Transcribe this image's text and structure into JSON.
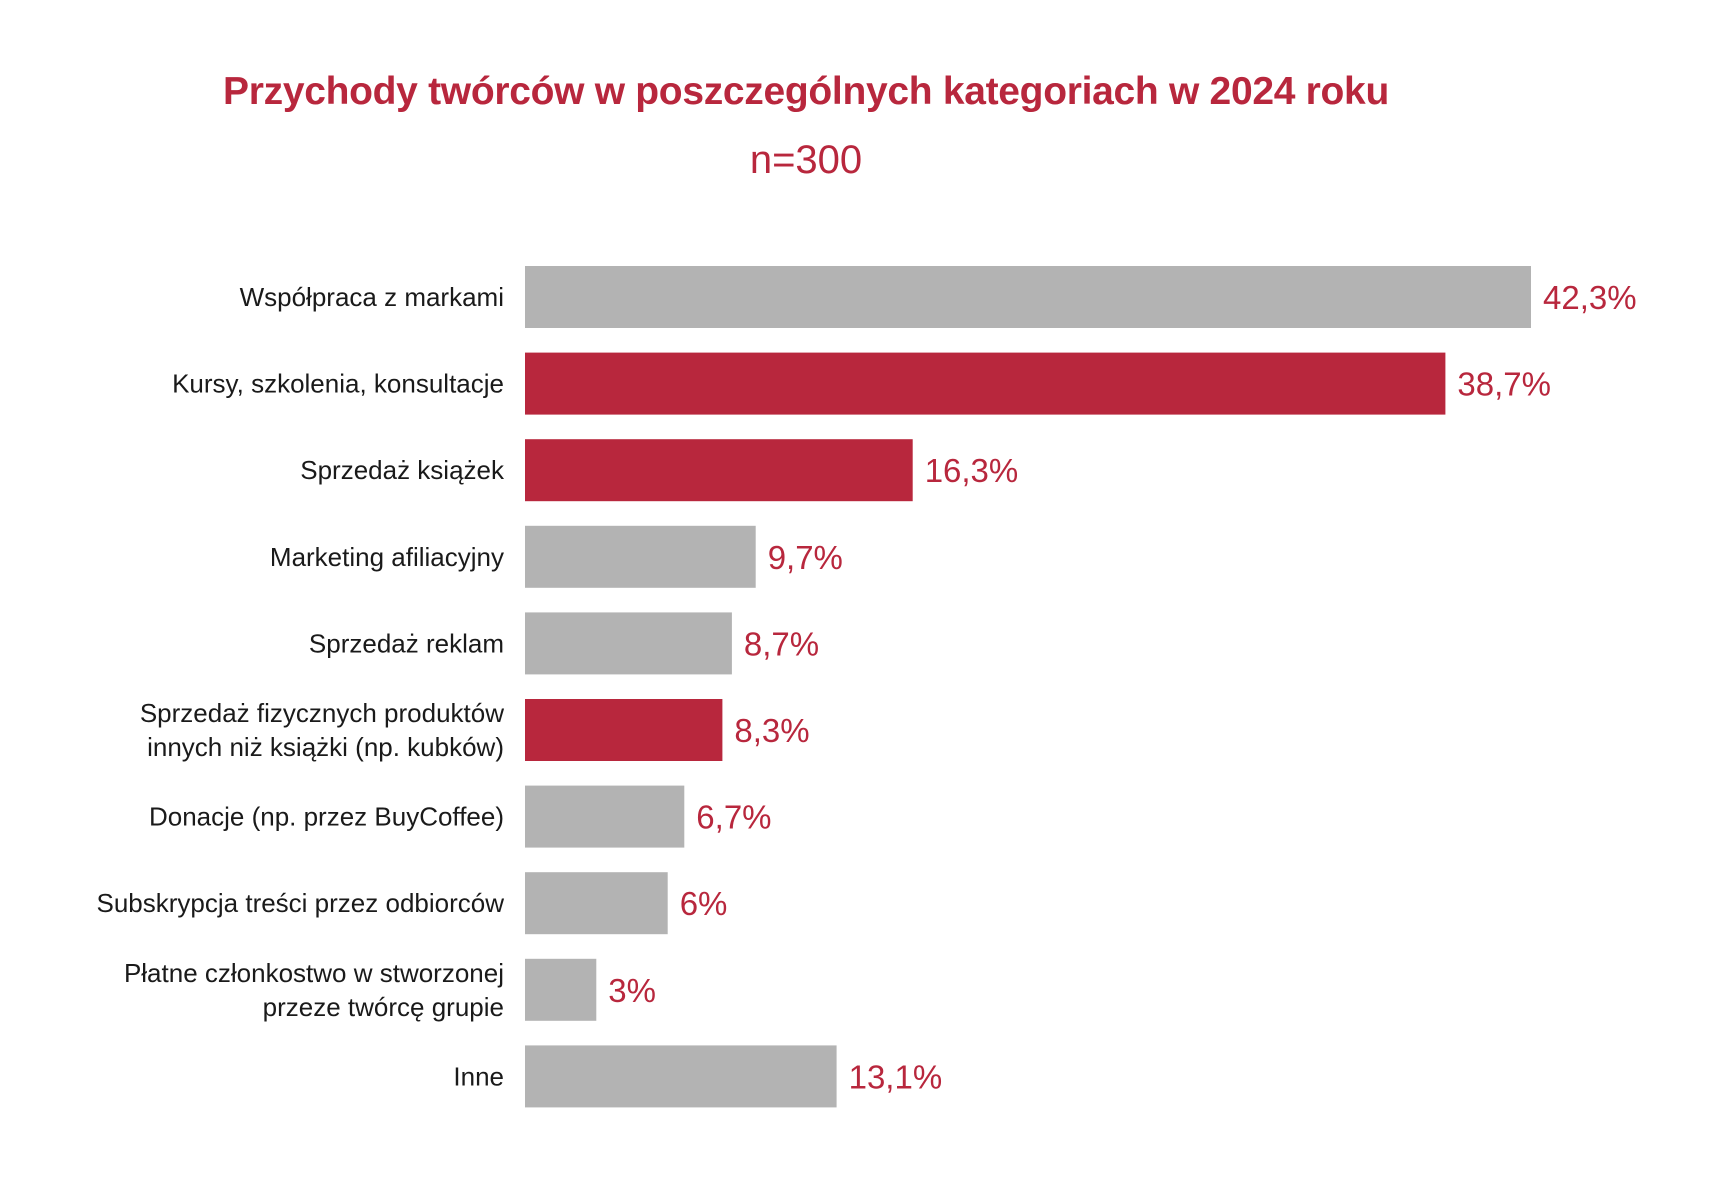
{
  "chart_data": {
    "type": "bar",
    "orientation": "horizontal",
    "title": "Przychody twórców w poszczególnych kategoriach w 2024 roku",
    "subtitle": "n=300",
    "categories": [
      [
        "Współpraca z markami"
      ],
      [
        "Kursy, szkolenia, konsultacje"
      ],
      [
        "Sprzedaż książek"
      ],
      [
        "Marketing afiliacyjny"
      ],
      [
        "Sprzedaż reklam"
      ],
      [
        "Sprzedaż fizycznych produktów",
        "innych niż książki (np. kubków)"
      ],
      [
        "Donacje (np. przez BuyCoffee)"
      ],
      [
        "Subskrypcja treści przez odbiorców"
      ],
      [
        "Płatne członkostwo w stworzonej",
        "przeze twórcę grupie"
      ],
      [
        "Inne"
      ]
    ],
    "values": [
      42.3,
      38.7,
      16.3,
      9.7,
      8.7,
      8.3,
      6.7,
      6,
      3,
      13.1
    ],
    "value_labels": [
      "42,3%",
      "38,7%",
      "16,3%",
      "9,7%",
      "8,7%",
      "8,3%",
      "6,7%",
      "6%",
      "3%",
      "13,1%"
    ],
    "highlighted": [
      false,
      true,
      true,
      false,
      false,
      true,
      false,
      false,
      false,
      false
    ],
    "xlim": [
      0,
      42.3
    ],
    "grid": false,
    "legend": "none"
  },
  "colors": {
    "highlight": "#b8273d",
    "default": "#b3b3b3",
    "value_text": "#b8273d",
    "title": "#b8273d",
    "label_text": "#1a1a1a"
  }
}
